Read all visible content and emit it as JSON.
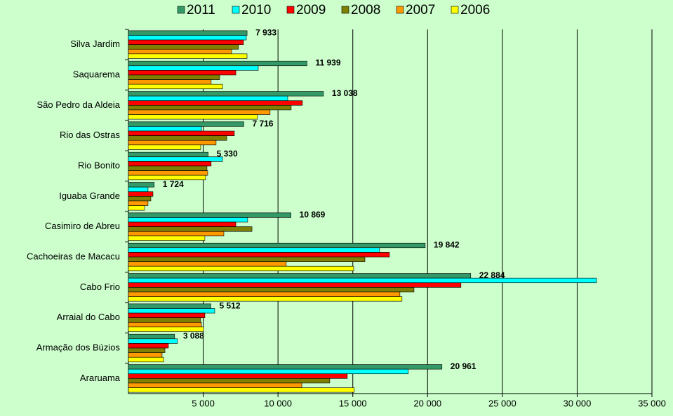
{
  "chart_data": {
    "type": "hbar",
    "categories": [
      "Silva Jardim",
      "Saquarema",
      "São Pedro da Aldeia",
      "Rio das Ostras",
      "Rio Bonito",
      "Iguaba Grande",
      "Casimiro de Abreu",
      "Cachoeiras de Macacu",
      "Cabo Frio",
      "Arraial do Cabo",
      "Armação dos Búzios",
      "Araruama"
    ],
    "series": [
      {
        "name": "2011",
        "color": "#339966",
        "values": [
          7933,
          11939,
          13038,
          7716,
          5330,
          1724,
          10869,
          19842,
          22884,
          5512,
          3088,
          20961
        ],
        "value_labels": [
          "7 933",
          "11 939",
          "13 038",
          "7 716",
          "5 330",
          "1 724",
          "10 869",
          "19 842",
          "22 884",
          "5 512",
          "3 088",
          "20 961"
        ]
      },
      {
        "name": "2010",
        "color": "#00ffff",
        "values": [
          7880,
          8680,
          10650,
          4880,
          6290,
          1310,
          7970,
          16790,
          31290,
          5770,
          3280,
          18710
        ]
      },
      {
        "name": "2009",
        "color": "#ff0000",
        "values": [
          7690,
          7180,
          11630,
          7080,
          5530,
          1640,
          7180,
          17450,
          22230,
          5110,
          2670,
          14630
        ]
      },
      {
        "name": "2008",
        "color": "#808000",
        "values": [
          7360,
          6100,
          10880,
          6570,
          5250,
          1500,
          8260,
          15810,
          19090,
          4830,
          2440,
          13460
        ]
      },
      {
        "name": "2007",
        "color": "#ff9900",
        "values": [
          6900,
          5530,
          9470,
          5860,
          5300,
          1310,
          6380,
          10550,
          18150,
          4880,
          2250,
          11590
        ]
      },
      {
        "name": "2006",
        "color": "#ffff00",
        "values": [
          7930,
          6290,
          8630,
          4830,
          5160,
          1080,
          5110,
          15060,
          18290,
          5020,
          2350,
          15100
        ]
      }
    ],
    "xlim": [
      0,
      35000
    ],
    "xticks": [
      {
        "value": 5000,
        "label": "5 000"
      },
      {
        "value": 10000,
        "label": "10 000"
      },
      {
        "value": 15000,
        "label": "15 000"
      },
      {
        "value": 20000,
        "label": "20 000"
      },
      {
        "value": 25000,
        "label": "25 000"
      },
      {
        "value": 30000,
        "label": "30 000"
      },
      {
        "value": 35000,
        "label": "35 000"
      }
    ],
    "grid": true,
    "legend": "top"
  }
}
